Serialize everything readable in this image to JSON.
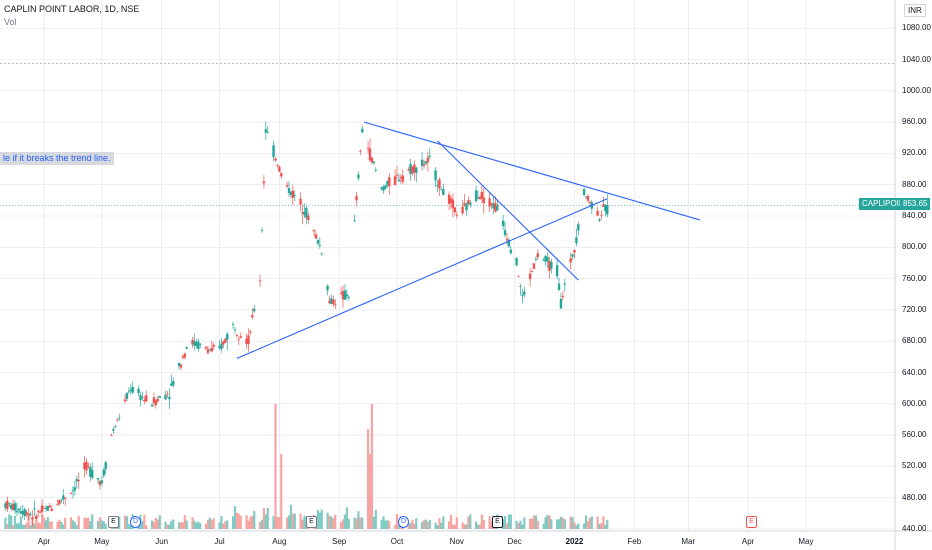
{
  "header": {
    "title": "CAPLIN POINT LABOR, 1D, NSE",
    "volume_label": "Vol",
    "currency": "INR"
  },
  "note": "le if it breaks the trend line.",
  "price_tag": {
    "symbol": "CAPLIPOINT",
    "last": "853.65"
  },
  "events": [
    "E",
    "D",
    "E",
    "D",
    "E",
    "E"
  ],
  "colors": {
    "up": "#26a69a",
    "down": "#ef5350",
    "trend_line": "#2962ff",
    "grid": "#e0e3eb",
    "vol_up": "#80cbc4",
    "vol_down": "#f7a5a3"
  },
  "chart_data": {
    "type": "candlestick",
    "title": "CAPLIN POINT LABOR, 1D, NSE",
    "y_unit": "INR",
    "ylim": [
      436,
      1100
    ],
    "y_ticks": [
      "1080.00",
      "1040.00",
      "1000.00",
      "960.00",
      "920.00",
      "880.00",
      "840.00",
      "800.00",
      "760.00",
      "720.00",
      "680.00",
      "640.00",
      "600.00",
      "560.00",
      "520.00",
      "480.00",
      "440.00"
    ],
    "x_ticks": [
      "Apr",
      "May",
      "Jun",
      "Jul",
      "Aug",
      "Sep",
      "Oct",
      "Nov",
      "Dec",
      "2022",
      "Feb",
      "Mar",
      "Apr",
      "May"
    ],
    "x_tick_positions_days": [
      0,
      30,
      61,
      91,
      122,
      153,
      183,
      214,
      244,
      275,
      306,
      334,
      365,
      395
    ],
    "last_price": 853.65,
    "anchor_points": [
      {
        "day": -20,
        "close": 472
      },
      {
        "day": -5,
        "close": 458
      },
      {
        "day": 5,
        "close": 470
      },
      {
        "day": 15,
        "close": 490
      },
      {
        "day": 22,
        "close": 520
      },
      {
        "day": 30,
        "close": 500
      },
      {
        "day": 35,
        "close": 560
      },
      {
        "day": 45,
        "close": 620
      },
      {
        "day": 55,
        "close": 600
      },
      {
        "day": 65,
        "close": 615
      },
      {
        "day": 75,
        "close": 680
      },
      {
        "day": 90,
        "close": 665
      },
      {
        "day": 98,
        "close": 700
      },
      {
        "day": 106,
        "close": 680
      },
      {
        "day": 112,
        "close": 760
      },
      {
        "day": 115,
        "close": 950
      },
      {
        "day": 125,
        "close": 880
      },
      {
        "day": 135,
        "close": 850
      },
      {
        "day": 145,
        "close": 790
      },
      {
        "day": 148,
        "close": 730
      },
      {
        "day": 158,
        "close": 740
      },
      {
        "day": 165,
        "close": 950
      },
      {
        "day": 175,
        "close": 875
      },
      {
        "day": 190,
        "close": 900
      },
      {
        "day": 200,
        "close": 910
      },
      {
        "day": 205,
        "close": 880
      },
      {
        "day": 215,
        "close": 840
      },
      {
        "day": 225,
        "close": 870
      },
      {
        "day": 235,
        "close": 850
      },
      {
        "day": 245,
        "close": 780
      },
      {
        "day": 248,
        "close": 735
      },
      {
        "day": 256,
        "close": 790
      },
      {
        "day": 266,
        "close": 770
      },
      {
        "day": 268,
        "close": 730
      },
      {
        "day": 275,
        "close": 800
      },
      {
        "day": 280,
        "close": 870
      },
      {
        "day": 288,
        "close": 840
      },
      {
        "day": 292,
        "close": 853.65
      }
    ],
    "volume_peaks": [
      {
        "day": 120,
        "volume": 100
      },
      {
        "day": 123,
        "volume": 60
      },
      {
        "day": 168,
        "volume": 80
      },
      {
        "day": 169,
        "volume": 60
      },
      {
        "day": 170,
        "volume": 100
      }
    ],
    "trend_lines": [
      {
        "from": {
          "day": 100,
          "price": 658
        },
        "to": {
          "day": 292,
          "price": 862
        }
      },
      {
        "from": {
          "day": 166,
          "price": 960
        },
        "to": {
          "day": 340,
          "price": 835
        }
      },
      {
        "from": {
          "day": 204,
          "price": 936
        },
        "to": {
          "day": 277,
          "price": 758
        }
      }
    ],
    "horizontal_lines": [
      1035,
      853.65
    ],
    "grid": true
  }
}
